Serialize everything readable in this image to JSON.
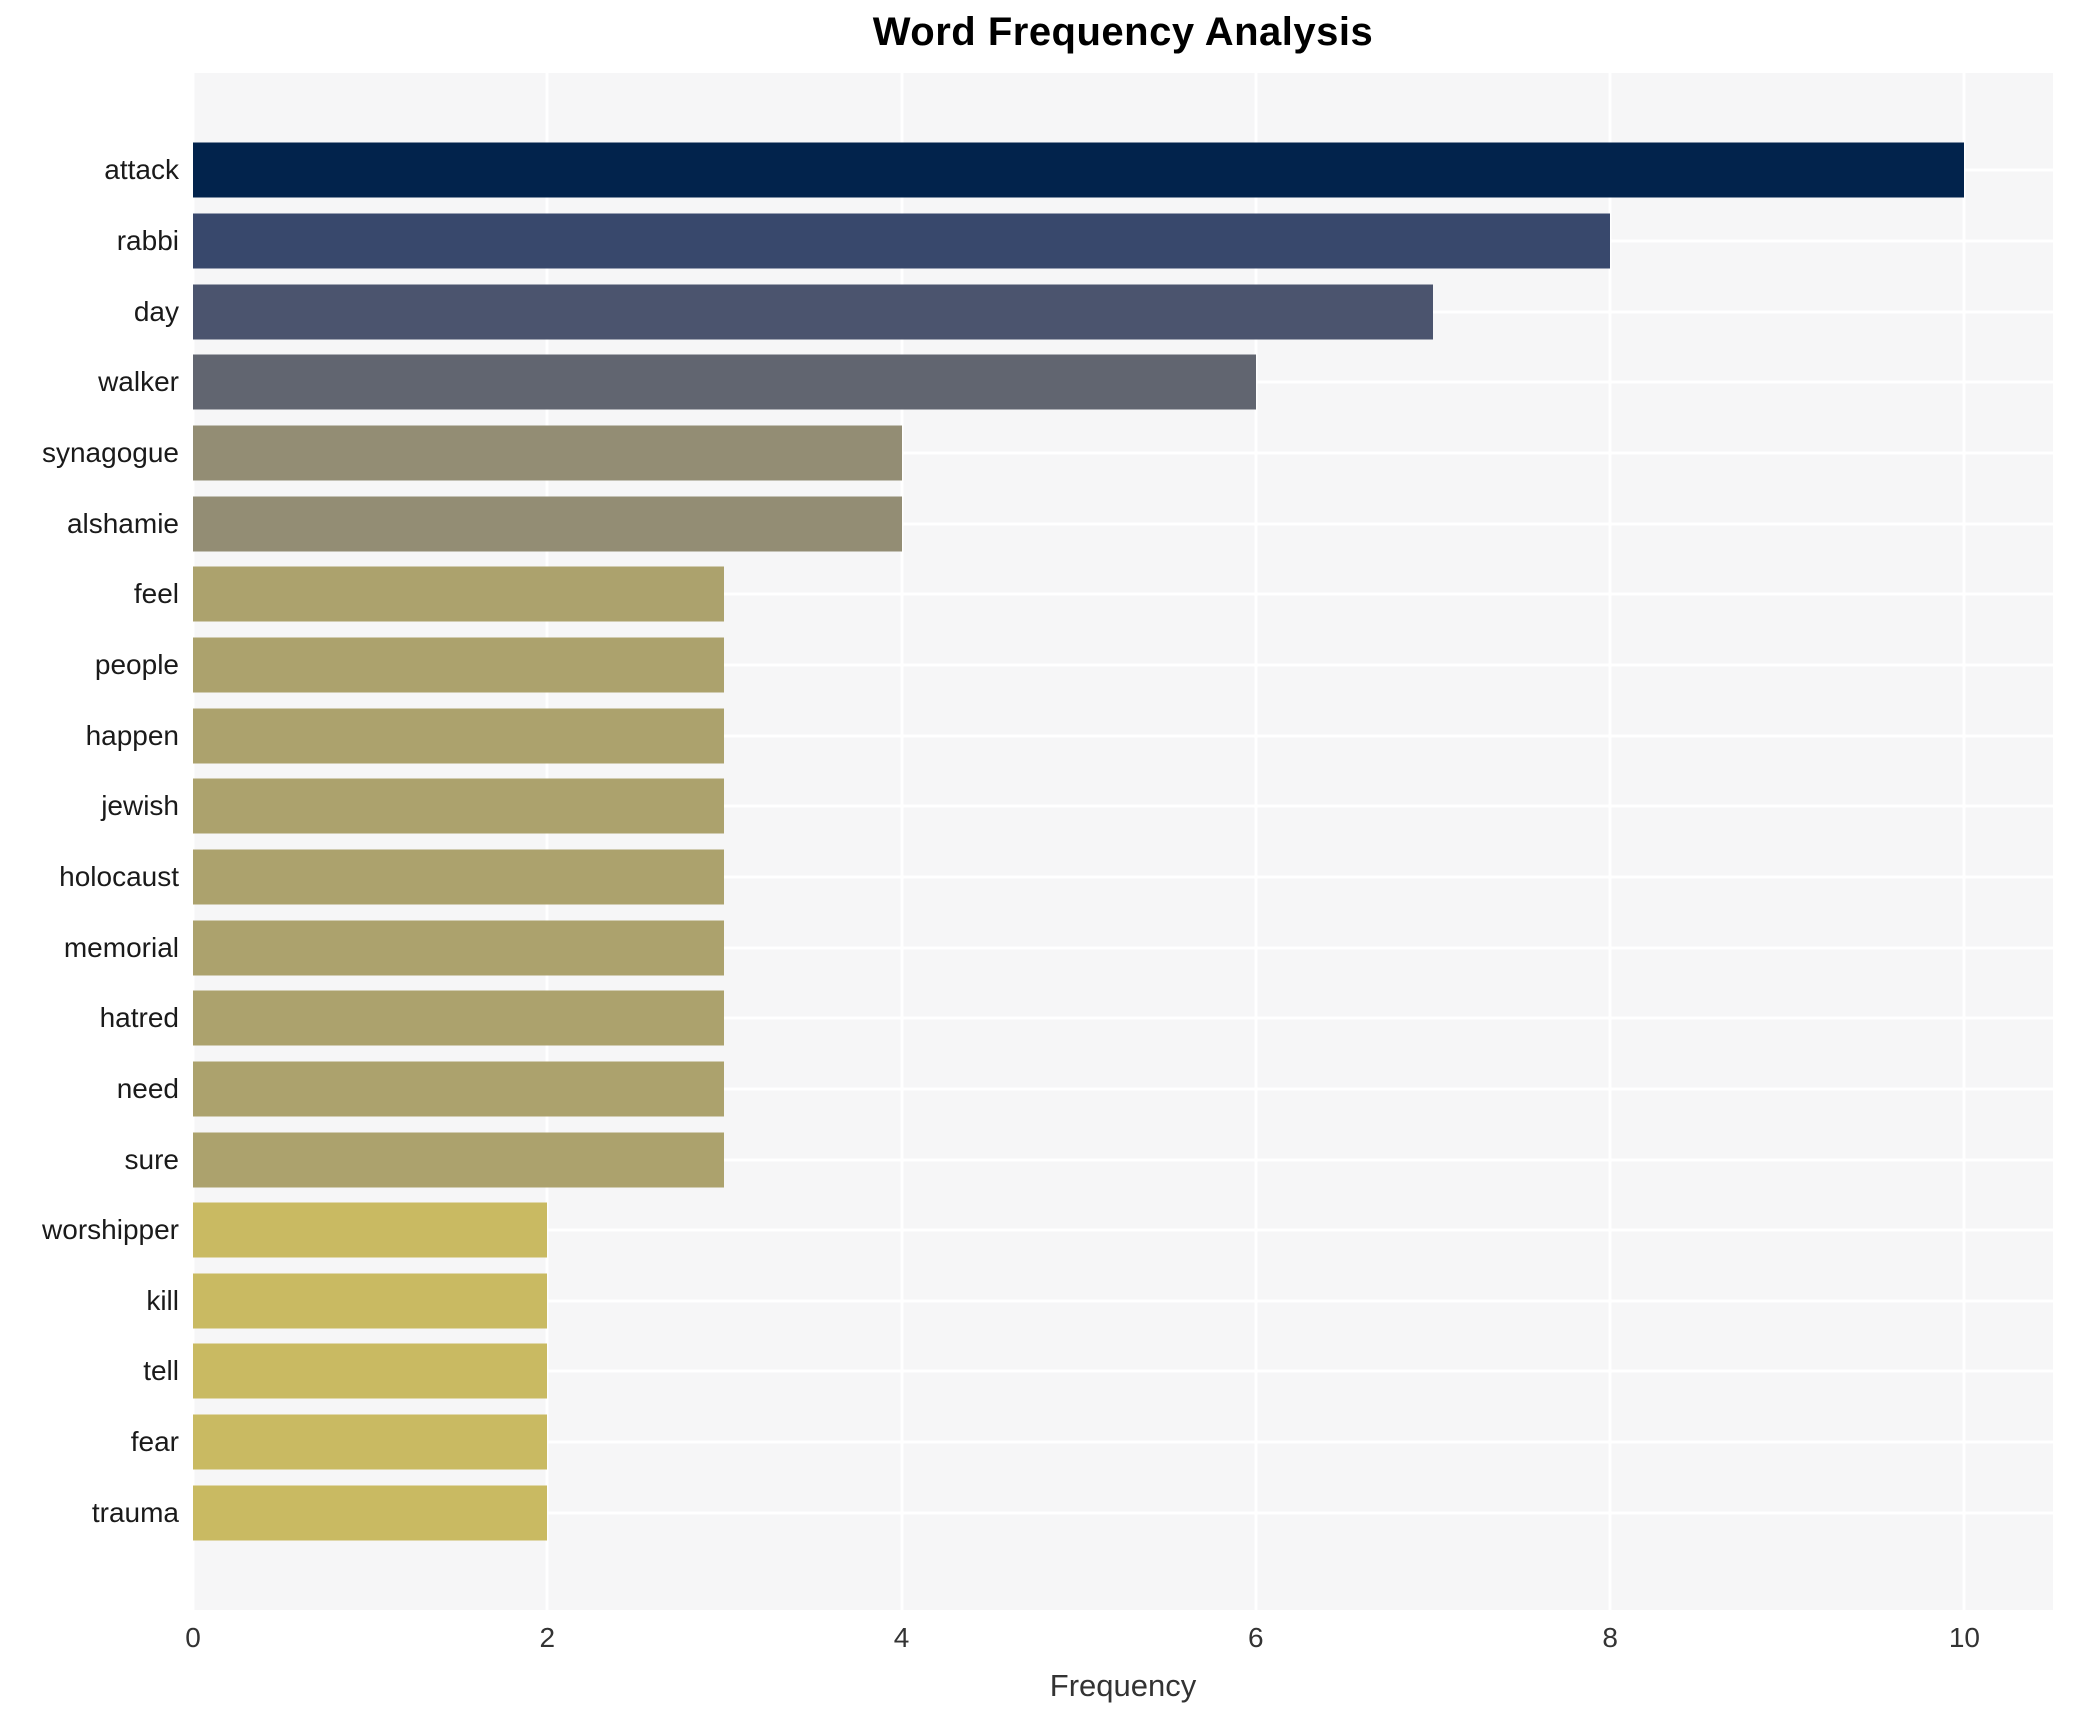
{
  "page_title": "Word Frequency Analysis",
  "chart_data": {
    "type": "bar",
    "orientation": "horizontal",
    "title": "Word Frequency Analysis",
    "xlabel": "Frequency",
    "ylabel": "",
    "categories": [
      "attack",
      "rabbi",
      "day",
      "walker",
      "synagogue",
      "alshamie",
      "feel",
      "people",
      "happen",
      "jewish",
      "holocaust",
      "memorial",
      "hatred",
      "need",
      "sure",
      "worshipper",
      "kill",
      "tell",
      "fear",
      "trauma"
    ],
    "values": [
      10,
      8,
      7,
      6,
      4,
      4,
      3,
      3,
      3,
      3,
      3,
      3,
      3,
      3,
      3,
      2,
      2,
      2,
      2,
      2
    ],
    "bar_colors": [
      "#02234c",
      "#38486c",
      "#4b546e",
      "#616570",
      "#938d74",
      "#938d74",
      "#aca26d",
      "#aca26d",
      "#aca26d",
      "#aca26d",
      "#aca26d",
      "#aca26d",
      "#aca26d",
      "#aca26d",
      "#aca26d",
      "#c9ba62",
      "#c9ba62",
      "#c9ba62",
      "#c9ba62",
      "#c9ba62"
    ],
    "xlim": [
      0,
      10.5
    ],
    "x_ticks": [
      0,
      2,
      4,
      6,
      8,
      10
    ],
    "grid": "white gridlines on light gray panel, vertical at x ticks and horizontal at category centers",
    "legend_position": "none",
    "plot_bg_color": "#f6f6f7",
    "page_bg_color": "#ffffff",
    "title_color": "#000000",
    "tick_label_color": "#333333",
    "category_label_color": "#1a1a1a"
  }
}
